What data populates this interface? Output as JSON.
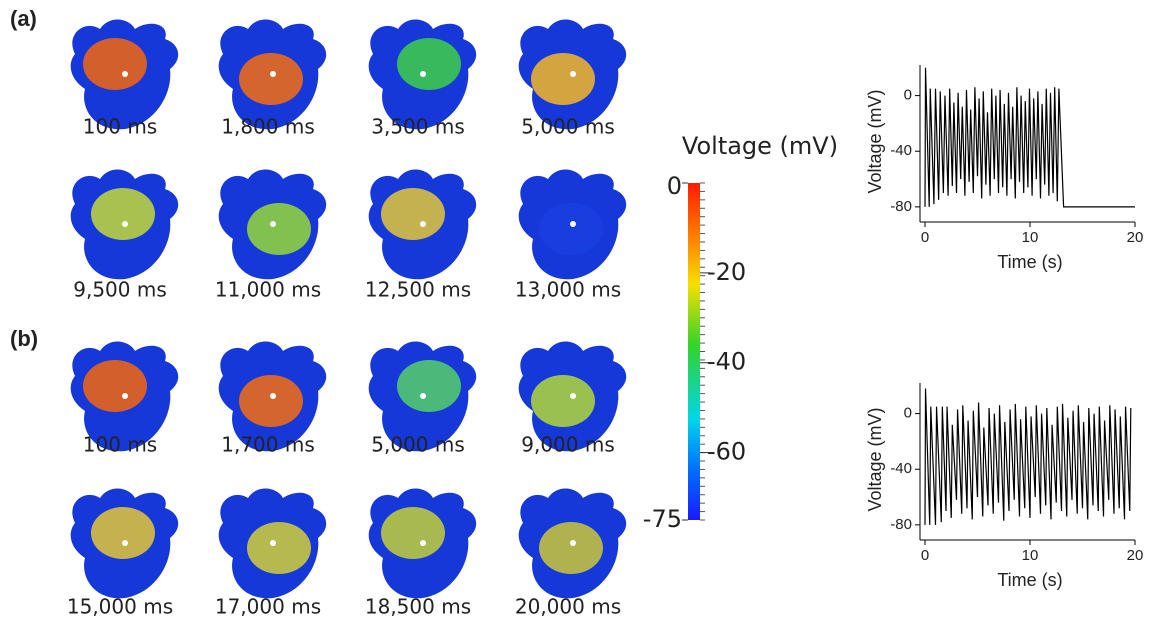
{
  "panels": [
    {
      "label": "(a)",
      "frames": [
        "100 ms",
        "1,800 ms",
        "3,500 ms",
        "5,000 ms",
        "9,500 ms",
        "11,000 ms",
        "12,500 ms",
        "13,000 ms"
      ],
      "chart": {
        "type": "line",
        "x_label": "Time (s)",
        "y_label": "Voltage (mV)",
        "color": "#000000",
        "xlim": [
          0,
          20
        ],
        "xticks": [
          0,
          10,
          20
        ],
        "ylim": [
          -88,
          22
        ],
        "yticks": [
          0,
          -40,
          -80
        ],
        "x": [
          0,
          0.05,
          0.4,
          0.5,
          0.85,
          1.0,
          1.3,
          1.45,
          1.75,
          1.9,
          2.2,
          2.35,
          2.6,
          2.75,
          3.0,
          3.15,
          3.4,
          3.55,
          3.8,
          3.95,
          4.2,
          4.35,
          4.6,
          4.75,
          5.0,
          5.15,
          5.4,
          5.55,
          5.8,
          5.95,
          6.2,
          6.35,
          6.6,
          6.75,
          7.0,
          7.15,
          7.4,
          7.55,
          7.8,
          7.95,
          8.2,
          8.35,
          8.6,
          8.75,
          9.0,
          9.15,
          9.4,
          9.55,
          9.8,
          9.95,
          10.2,
          10.35,
          10.6,
          10.75,
          11.0,
          11.15,
          11.4,
          11.55,
          11.8,
          11.95,
          12.2,
          12.35,
          12.6,
          12.75,
          13.2,
          20
        ],
        "values": [
          -80,
          20,
          -80,
          5,
          -78,
          5,
          -75,
          3,
          -70,
          0,
          -72,
          5,
          -65,
          -5,
          -70,
          2,
          -60,
          -8,
          -72,
          4,
          -62,
          -10,
          -70,
          6,
          -58,
          -2,
          -74,
          3,
          -64,
          -12,
          -72,
          5,
          -60,
          0,
          -70,
          4,
          -66,
          -6,
          -72,
          2,
          -60,
          -8,
          -74,
          6,
          -62,
          0,
          -70,
          -4,
          -66,
          5,
          -72,
          -2,
          -60,
          3,
          -74,
          -6,
          -64,
          5,
          -72,
          2,
          -70,
          6,
          -76,
          5,
          -80,
          -80
        ]
      }
    },
    {
      "label": "(b)",
      "frames": [
        "100 ms",
        "1,700 ms",
        "5,000 ms",
        "9,000 ms",
        "15,000 ms",
        "17,000 ms",
        "18,500 ms",
        "20,000 ms"
      ],
      "chart": {
        "type": "line",
        "x_label": "Time (s)",
        "y_label": "Voltage (mV)",
        "color": "#000000",
        "xlim": [
          0,
          20
        ],
        "xticks": [
          0,
          10,
          20
        ],
        "ylim": [
          -88,
          22
        ],
        "yticks": [
          0,
          -40,
          -80
        ],
        "x": [
          0,
          0.05,
          0.45,
          0.55,
          1.0,
          1.1,
          1.55,
          1.65,
          2.0,
          2.1,
          2.5,
          2.6,
          3.0,
          3.1,
          3.5,
          3.6,
          4.0,
          4.1,
          4.5,
          4.6,
          5.0,
          5.1,
          5.5,
          5.6,
          6.0,
          6.1,
          6.5,
          6.6,
          7.0,
          7.1,
          7.5,
          7.6,
          8.0,
          8.1,
          8.5,
          8.6,
          9.0,
          9.1,
          9.5,
          9.6,
          10.0,
          10.1,
          10.5,
          10.6,
          11.0,
          11.1,
          11.5,
          11.6,
          12.0,
          12.1,
          12.5,
          12.6,
          13.0,
          13.1,
          13.5,
          13.6,
          14.0,
          14.1,
          14.5,
          14.6,
          15.0,
          15.1,
          15.5,
          15.6,
          16.0,
          16.1,
          16.5,
          16.6,
          17.0,
          17.1,
          17.5,
          17.6,
          18.0,
          18.1,
          18.5,
          18.6,
          19.0,
          19.1,
          19.5,
          19.6
        ],
        "values": [
          -80,
          18,
          -80,
          5,
          -80,
          5,
          -78,
          5,
          -70,
          5,
          -75,
          -8,
          -62,
          3,
          -72,
          6,
          -68,
          -5,
          -76,
          2,
          -60,
          8,
          -74,
          -10,
          -66,
          4,
          -72,
          0,
          -64,
          6,
          -77,
          -6,
          -70,
          3,
          -62,
          7,
          -74,
          -4,
          -68,
          5,
          -75,
          -2,
          -60,
          6,
          -72,
          0,
          -66,
          4,
          -76,
          -8,
          -64,
          5,
          -70,
          7,
          -74,
          -3,
          -62,
          2,
          -72,
          6,
          -68,
          -6,
          -76,
          4,
          -66,
          0,
          -70,
          5,
          -74,
          -5,
          -62,
          6,
          -72,
          3,
          -68,
          -2,
          -76,
          5,
          -70,
          4
        ]
      }
    }
  ],
  "colorbar": {
    "title": "Voltage (mV)",
    "lim": [
      -75,
      0
    ],
    "ticks": [
      0,
      -20,
      -40,
      -60,
      -75
    ]
  }
}
